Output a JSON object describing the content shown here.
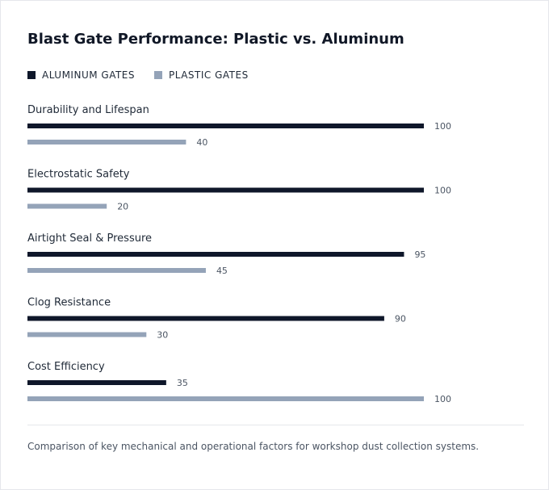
{
  "colors": {
    "aluminum": "#0f172a",
    "plastic": "#94a3b8"
  },
  "legend": {
    "aluminum_label": "ALUMINUM GATES",
    "plastic_label": "PLASTIC GATES"
  },
  "caption": "Comparison of key mechanical and operational factors for workshop dust collection systems.",
  "chart_data": {
    "type": "bar",
    "orientation": "horizontal",
    "title": "Blast Gate Performance: Plastic vs. Aluminum",
    "xlim": [
      0,
      100
    ],
    "grid": false,
    "legend_position": "top-left",
    "categories": [
      "Durability and Lifespan",
      "Electrostatic Safety",
      "Airtight Seal & Pressure",
      "Clog Resistance",
      "Cost Efficiency"
    ],
    "series": [
      {
        "name": "ALUMINUM GATES",
        "values": [
          100,
          100,
          95,
          90,
          35
        ]
      },
      {
        "name": "PLASTIC GATES",
        "values": [
          40,
          20,
          45,
          30,
          100
        ]
      }
    ]
  }
}
